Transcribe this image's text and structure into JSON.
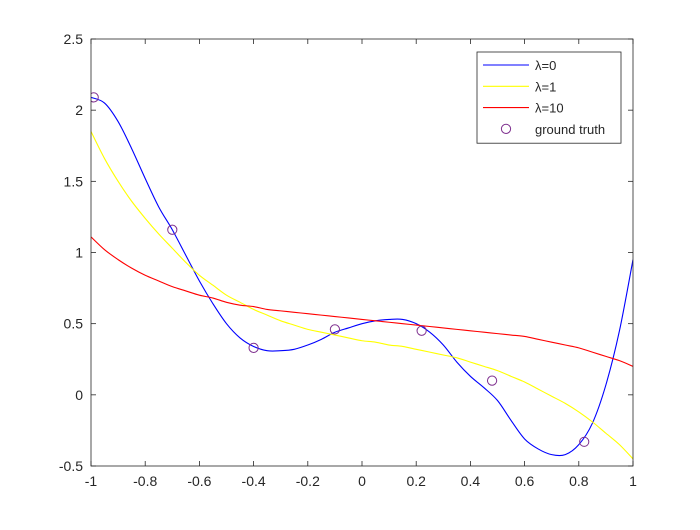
{
  "chart_data": {
    "type": "line",
    "title": "",
    "xlabel": "",
    "ylabel": "",
    "xlim": [
      -1,
      1
    ],
    "ylim": [
      -0.5,
      2.5
    ],
    "grid": false,
    "box": true,
    "legend_position": "top-right",
    "xticks": [
      -1,
      -0.8,
      -0.6,
      -0.4,
      -0.2,
      0,
      0.2,
      0.4,
      0.6,
      0.8,
      1
    ],
    "xtick_labels": [
      "-1",
      "-0.8",
      "-0.6",
      "-0.4",
      "-0.2",
      "0",
      "0.2",
      "0.4",
      "0.6",
      "0.8",
      "1"
    ],
    "yticks": [
      -0.5,
      0,
      0.5,
      1,
      1.5,
      2,
      2.5
    ],
    "ytick_labels": [
      "-0.5",
      "0",
      "0.5",
      "1",
      "1.5",
      "2",
      "2.5"
    ],
    "series": [
      {
        "name": "λ=0",
        "style": "line",
        "color": "#0000ff",
        "x": [
          -1,
          -0.95,
          -0.9,
          -0.85,
          -0.8,
          -0.75,
          -0.7,
          -0.65,
          -0.6,
          -0.55,
          -0.5,
          -0.45,
          -0.4,
          -0.35,
          -0.3,
          -0.25,
          -0.2,
          -0.15,
          -0.1,
          -0.05,
          0,
          0.05,
          0.1,
          0.15,
          0.2,
          0.25,
          0.3,
          0.35,
          0.4,
          0.45,
          0.5,
          0.55,
          0.6,
          0.65,
          0.7,
          0.75,
          0.8,
          0.85,
          0.9,
          0.95,
          1
        ],
        "y": [
          2.09,
          2.05,
          1.92,
          1.73,
          1.52,
          1.32,
          1.16,
          0.98,
          0.8,
          0.64,
          0.5,
          0.4,
          0.34,
          0.31,
          0.31,
          0.32,
          0.35,
          0.39,
          0.44,
          0.47,
          0.5,
          0.52,
          0.53,
          0.53,
          0.5,
          0.44,
          0.35,
          0.23,
          0.13,
          0.05,
          -0.04,
          -0.18,
          -0.31,
          -0.38,
          -0.42,
          -0.42,
          -0.35,
          -0.2,
          0.07,
          0.45,
          0.95
        ]
      },
      {
        "name": "λ=1",
        "style": "line",
        "color": "#ffff00",
        "x": [
          -1,
          -0.95,
          -0.9,
          -0.85,
          -0.8,
          -0.75,
          -0.7,
          -0.65,
          -0.6,
          -0.55,
          -0.5,
          -0.45,
          -0.4,
          -0.35,
          -0.3,
          -0.25,
          -0.2,
          -0.15,
          -0.1,
          -0.05,
          0,
          0.05,
          0.1,
          0.15,
          0.2,
          0.25,
          0.3,
          0.35,
          0.4,
          0.45,
          0.5,
          0.55,
          0.6,
          0.65,
          0.7,
          0.75,
          0.8,
          0.85,
          0.9,
          0.95,
          1
        ],
        "y": [
          1.85,
          1.66,
          1.5,
          1.36,
          1.24,
          1.13,
          1.03,
          0.93,
          0.84,
          0.77,
          0.7,
          0.65,
          0.6,
          0.56,
          0.52,
          0.49,
          0.46,
          0.44,
          0.42,
          0.4,
          0.38,
          0.37,
          0.35,
          0.34,
          0.32,
          0.3,
          0.28,
          0.26,
          0.23,
          0.2,
          0.17,
          0.13,
          0.09,
          0.04,
          -0.01,
          -0.06,
          -0.12,
          -0.19,
          -0.27,
          -0.35,
          -0.45
        ]
      },
      {
        "name": "λ=10",
        "style": "line",
        "color": "#ff0000",
        "x": [
          -1,
          -0.95,
          -0.9,
          -0.85,
          -0.8,
          -0.75,
          -0.7,
          -0.65,
          -0.6,
          -0.55,
          -0.5,
          -0.45,
          -0.4,
          -0.35,
          -0.3,
          -0.25,
          -0.2,
          -0.15,
          -0.1,
          -0.05,
          0,
          0.05,
          0.1,
          0.15,
          0.2,
          0.25,
          0.3,
          0.35,
          0.4,
          0.45,
          0.5,
          0.55,
          0.6,
          0.65,
          0.7,
          0.75,
          0.8,
          0.85,
          0.9,
          0.95,
          1
        ],
        "y": [
          1.11,
          1.02,
          0.95,
          0.89,
          0.84,
          0.8,
          0.76,
          0.73,
          0.7,
          0.68,
          0.65,
          0.63,
          0.62,
          0.6,
          0.59,
          0.58,
          0.57,
          0.56,
          0.55,
          0.54,
          0.53,
          0.52,
          0.51,
          0.5,
          0.49,
          0.48,
          0.47,
          0.46,
          0.45,
          0.44,
          0.43,
          0.42,
          0.41,
          0.39,
          0.37,
          0.35,
          0.33,
          0.3,
          0.27,
          0.24,
          0.2
        ]
      },
      {
        "name": "ground truth",
        "style": "markers",
        "marker": "circle",
        "color": "#7e2f8e",
        "x": [
          -0.99,
          -0.7,
          -0.4,
          -0.1,
          0.22,
          0.48,
          0.82
        ],
        "y": [
          2.09,
          1.16,
          0.33,
          0.46,
          0.45,
          0.1,
          -0.33
        ]
      }
    ]
  }
}
